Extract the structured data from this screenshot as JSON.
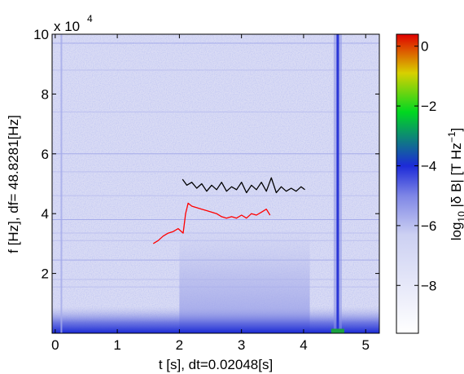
{
  "chart_data": {
    "type": "heatmap",
    "xlabel": "t [s], dt=0.02048[s]",
    "ylabel": "f [Hz], df= 48.8281[Hz]",
    "y_exponent_label": "x 10",
    "y_exponent_power": "4",
    "xlim": [
      -0.05,
      5.22
    ],
    "ylim": [
      0,
      100000
    ],
    "x_ticks": [
      0,
      1,
      2,
      3,
      4,
      5
    ],
    "x_tick_labels": [
      "0",
      "1",
      "2",
      "3",
      "4",
      "5"
    ],
    "y_ticks": [
      20000,
      40000,
      60000,
      80000,
      100000
    ],
    "y_tick_labels": [
      "2",
      "4",
      "6",
      "8",
      "10"
    ],
    "colorbar": {
      "label_prefix": "log",
      "label_sub": "10",
      "label_mid": " |δ B| [T Hz",
      "label_sup": "−1",
      "label_suffix": "]",
      "lim": [
        -9.6,
        0.4
      ],
      "ticks": [
        0,
        -2,
        -4,
        -6,
        -8
      ],
      "tick_labels": [
        "0",
        "−2",
        "−4",
        "−6",
        "−8"
      ],
      "colormap": [
        "#ffffff",
        "#ccd0f2",
        "#7e86e6",
        "#1c2ad8",
        "#00d820",
        "#d8d000",
        "#e00000"
      ]
    },
    "background_levels": [
      {
        "t": [
          -0.05,
          5.22
        ],
        "f": [
          0,
          100000
        ],
        "level": -6.9
      },
      {
        "t": [
          2.0,
          4.1
        ],
        "f": [
          0,
          42000
        ],
        "level": -5.7
      },
      {
        "t": [
          -0.05,
          5.22
        ],
        "f": [
          0,
          3000
        ],
        "level": -3.5
      }
    ],
    "series": [
      {
        "color": "#000000",
        "x": [
          2.05,
          2.12,
          2.2,
          2.28,
          2.36,
          2.44,
          2.52,
          2.6,
          2.68,
          2.76,
          2.84,
          2.92,
          3.0,
          3.08,
          3.16,
          3.24,
          3.32,
          3.4,
          3.48,
          3.56,
          3.64,
          3.72,
          3.8,
          3.88,
          3.96,
          4.02
        ],
        "y": [
          51500,
          49500,
          50500,
          48500,
          50000,
          47500,
          49500,
          48000,
          50500,
          47500,
          49000,
          48000,
          50500,
          47000,
          49500,
          48000,
          50500,
          47500,
          52000,
          47000,
          49000,
          47500,
          48500,
          47500,
          49000,
          48000
        ]
      },
      {
        "color": "#ff0000",
        "x": [
          1.58,
          1.66,
          1.74,
          1.82,
          1.9,
          1.98,
          2.06,
          2.1,
          2.14,
          2.2,
          2.28,
          2.36,
          2.44,
          2.52,
          2.6,
          2.68,
          2.76,
          2.84,
          2.92,
          3.0,
          3.08,
          3.16,
          3.24,
          3.32,
          3.4,
          3.46
        ],
        "y": [
          30000,
          31000,
          32500,
          33500,
          34000,
          35000,
          33500,
          40000,
          43500,
          42500,
          42000,
          41500,
          41000,
          40500,
          40000,
          39000,
          38500,
          39000,
          38500,
          39500,
          38500,
          40000,
          39500,
          40500,
          41500,
          39500
        ]
      }
    ],
    "features": [
      {
        "name": "broadband spike",
        "t": 4.55,
        "level": -4.0
      },
      {
        "name": "faint line",
        "t": 0.1,
        "level": -5.5
      }
    ]
  }
}
